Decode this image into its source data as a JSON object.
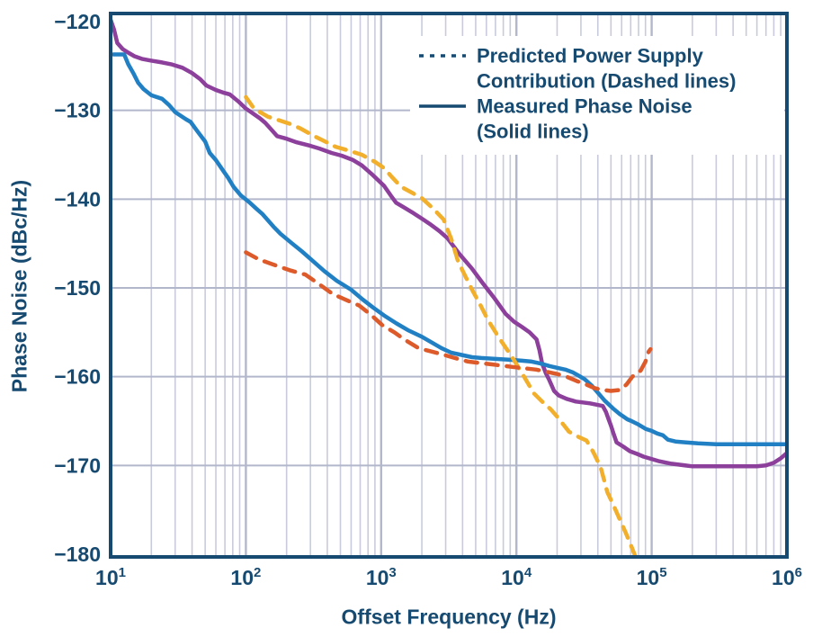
{
  "axes": {
    "x_label": "Offset Frequency (Hz)",
    "y_label": "Phase Noise (dBc/Hz)",
    "x_ticks": [
      {
        "base": "10",
        "exp": "1",
        "value": 10
      },
      {
        "base": "10",
        "exp": "2",
        "value": 100
      },
      {
        "base": "10",
        "exp": "3",
        "value": 1000
      },
      {
        "base": "10",
        "exp": "4",
        "value": 10000
      },
      {
        "base": "10",
        "exp": "5",
        "value": 100000
      },
      {
        "base": "10",
        "exp": "6",
        "value": 1000000
      }
    ],
    "y_ticks": [
      {
        "label": "−120",
        "value": -120
      },
      {
        "label": "−130",
        "value": -130
      },
      {
        "label": "−140",
        "value": -140
      },
      {
        "label": "−150",
        "value": -150
      },
      {
        "label": "−160",
        "value": -160
      },
      {
        "label": "−170",
        "value": -170
      },
      {
        "label": "−180",
        "value": -180
      }
    ]
  },
  "legend": {
    "items": [
      {
        "style": "dashed",
        "lines": [
          "Predicted Power Supply",
          "Contribution (Dashed lines)"
        ]
      },
      {
        "style": "solid",
        "lines": [
          "Measured Phase Noise",
          "(Solid lines)"
        ]
      }
    ]
  },
  "colors": {
    "navy": "#174A70",
    "grid_minor": "#c9cbdc",
    "grid_major": "#b3b7cc",
    "background": "#ffffff",
    "blue": "#2180C4",
    "purple": "#8C3F9B",
    "yellow": "#F1AF2C",
    "orange": "#DD5B2B"
  },
  "chart_data": {
    "type": "line",
    "x_scale": "log",
    "x_range": [
      10,
      1000000
    ],
    "y_range": [
      -180,
      -120
    ],
    "grid": "on",
    "legend_position": "top-right",
    "xlabel": "Offset Frequency (Hz)",
    "ylabel": "Phase Noise (dBc/Hz)",
    "series": [
      {
        "name": "measured-phase-noise-purple",
        "group": "Measured Phase Noise (Solid lines)",
        "color": "#8C3F9B",
        "dashed": false,
        "points": [
          [
            10,
            -119.8
          ],
          [
            10.6,
            -120.9
          ],
          [
            11.2,
            -122.4
          ],
          [
            12.3,
            -123.1
          ],
          [
            13.5,
            -123.5
          ],
          [
            15,
            -123.9
          ],
          [
            17,
            -124.2
          ],
          [
            20,
            -124.4
          ],
          [
            24,
            -124.6
          ],
          [
            28,
            -124.8
          ],
          [
            34,
            -125.2
          ],
          [
            40,
            -125.8
          ],
          [
            46,
            -126.5
          ],
          [
            51,
            -127.2
          ],
          [
            60,
            -127.7
          ],
          [
            68,
            -128.0
          ],
          [
            76,
            -128.2
          ],
          [
            88,
            -129.0
          ],
          [
            100,
            -129.8
          ],
          [
            114,
            -130.4
          ],
          [
            127,
            -130.9
          ],
          [
            139,
            -131.4
          ],
          [
            155,
            -132.2
          ],
          [
            170,
            -132.9
          ],
          [
            200,
            -133.2
          ],
          [
            238,
            -133.6
          ],
          [
            300,
            -134.0
          ],
          [
            350,
            -134.3
          ],
          [
            430,
            -134.8
          ],
          [
            510,
            -135.1
          ],
          [
            620,
            -135.6
          ],
          [
            720,
            -136.2
          ],
          [
            870,
            -137.3
          ],
          [
            1050,
            -138.5
          ],
          [
            1180,
            -139.6
          ],
          [
            1290,
            -140.4
          ],
          [
            1500,
            -141.0
          ],
          [
            1740,
            -141.6
          ],
          [
            2000,
            -142.2
          ],
          [
            2340,
            -142.9
          ],
          [
            2700,
            -143.6
          ],
          [
            3090,
            -144.4
          ],
          [
            3800,
            -146.2
          ],
          [
            4680,
            -147.8
          ],
          [
            5600,
            -149.4
          ],
          [
            6900,
            -151.2
          ],
          [
            8300,
            -152.9
          ],
          [
            9600,
            -153.8
          ],
          [
            11000,
            -154.4
          ],
          [
            12500,
            -155.0
          ],
          [
            14100,
            -155.8
          ],
          [
            14800,
            -157.0
          ],
          [
            15500,
            -158.5
          ],
          [
            16500,
            -159.6
          ],
          [
            17400,
            -160.3
          ],
          [
            19000,
            -161.6
          ],
          [
            20500,
            -162.1
          ],
          [
            23500,
            -162.5
          ],
          [
            27500,
            -162.8
          ],
          [
            35000,
            -163.0
          ],
          [
            43500,
            -163.3
          ],
          [
            46000,
            -164.0
          ],
          [
            48000,
            -164.8
          ],
          [
            50000,
            -165.5
          ],
          [
            52500,
            -166.5
          ],
          [
            55000,
            -167.4
          ],
          [
            62000,
            -167.9
          ],
          [
            69000,
            -168.4
          ],
          [
            78000,
            -168.7
          ],
          [
            87000,
            -169.0
          ],
          [
            112000,
            -169.5
          ],
          [
            140000,
            -169.8
          ],
          [
            200000,
            -170.1
          ],
          [
            300000,
            -170.1
          ],
          [
            450000,
            -170.1
          ],
          [
            600000,
            -170.1
          ],
          [
            700000,
            -170.0
          ],
          [
            800000,
            -169.7
          ],
          [
            900000,
            -169.2
          ],
          [
            1000000,
            -168.6
          ]
        ]
      },
      {
        "name": "measured-phase-noise-blue",
        "group": "Measured Phase Noise (Solid lines)",
        "color": "#2180C4",
        "dashed": false,
        "points": [
          [
            10.5,
            -123.7
          ],
          [
            12.6,
            -123.7
          ],
          [
            13.5,
            -124.8
          ],
          [
            14.7,
            -125.8
          ],
          [
            16,
            -126.9
          ],
          [
            17.5,
            -127.6
          ],
          [
            20,
            -128.3
          ],
          [
            24,
            -128.7
          ],
          [
            27,
            -129.4
          ],
          [
            30,
            -130.2
          ],
          [
            36,
            -131.0
          ],
          [
            39,
            -131.3
          ],
          [
            44,
            -132.4
          ],
          [
            50,
            -133.5
          ],
          [
            54,
            -134.8
          ],
          [
            60,
            -135.6
          ],
          [
            68,
            -136.8
          ],
          [
            74,
            -137.6
          ],
          [
            81,
            -138.6
          ],
          [
            92,
            -139.6
          ],
          [
            107,
            -140.4
          ],
          [
            120,
            -141.1
          ],
          [
            133,
            -141.7
          ],
          [
            160,
            -143.1
          ],
          [
            180,
            -143.9
          ],
          [
            220,
            -145.0
          ],
          [
            260,
            -145.9
          ],
          [
            320,
            -147.1
          ],
          [
            380,
            -148.1
          ],
          [
            470,
            -149.2
          ],
          [
            600,
            -150.2
          ],
          [
            730,
            -151.3
          ],
          [
            870,
            -152.2
          ],
          [
            1050,
            -153.1
          ],
          [
            1300,
            -154.0
          ],
          [
            1600,
            -154.8
          ],
          [
            2000,
            -155.5
          ],
          [
            2400,
            -156.2
          ],
          [
            2800,
            -156.8
          ],
          [
            3300,
            -157.3
          ],
          [
            3800,
            -157.5
          ],
          [
            4700,
            -157.8
          ],
          [
            5500,
            -157.9
          ],
          [
            7000,
            -158.0
          ],
          [
            9000,
            -158.1
          ],
          [
            11000,
            -158.2
          ],
          [
            13000,
            -158.3
          ],
          [
            15000,
            -158.5
          ],
          [
            17500,
            -158.8
          ],
          [
            20000,
            -159.0
          ],
          [
            23000,
            -159.2
          ],
          [
            26000,
            -159.5
          ],
          [
            29000,
            -159.9
          ],
          [
            32000,
            -160.3
          ],
          [
            36000,
            -161.0
          ],
          [
            40000,
            -161.8
          ],
          [
            45000,
            -162.7
          ],
          [
            52000,
            -163.6
          ],
          [
            58000,
            -164.2
          ],
          [
            62000,
            -164.5
          ],
          [
            66000,
            -164.8
          ],
          [
            71000,
            -165.0
          ],
          [
            80000,
            -165.4
          ],
          [
            91000,
            -165.9
          ],
          [
            100000,
            -166.1
          ],
          [
            110000,
            -166.4
          ],
          [
            121000,
            -166.6
          ],
          [
            132000,
            -167.1
          ],
          [
            150000,
            -167.3
          ],
          [
            180000,
            -167.4
          ],
          [
            220000,
            -167.5
          ],
          [
            300000,
            -167.6
          ],
          [
            500000,
            -167.6
          ],
          [
            1000000,
            -167.6
          ]
        ]
      },
      {
        "name": "predicted-supply-contribution-yellow",
        "group": "Predicted Power Supply Contribution (Dashed lines)",
        "color": "#F1AF2C",
        "dashed": true,
        "points": [
          [
            100,
            -128.5
          ],
          [
            115,
            -129.8
          ],
          [
            145,
            -130.7
          ],
          [
            210,
            -131.5
          ],
          [
            250,
            -132.0
          ],
          [
            320,
            -132.9
          ],
          [
            460,
            -134.1
          ],
          [
            600,
            -134.6
          ],
          [
            720,
            -135.0
          ],
          [
            900,
            -135.8
          ],
          [
            1050,
            -136.5
          ],
          [
            1200,
            -137.5
          ],
          [
            1400,
            -138.6
          ],
          [
            1700,
            -139.3
          ],
          [
            2000,
            -139.9
          ],
          [
            2400,
            -141.0
          ],
          [
            2900,
            -142.3
          ],
          [
            3300,
            -144.5
          ],
          [
            3700,
            -147.0
          ],
          [
            4200,
            -148.7
          ],
          [
            4700,
            -150.2
          ],
          [
            5400,
            -151.9
          ],
          [
            6200,
            -153.7
          ],
          [
            7500,
            -155.7
          ],
          [
            9300,
            -157.8
          ],
          [
            11000,
            -159.6
          ],
          [
            13500,
            -161.9
          ],
          [
            15500,
            -162.8
          ],
          [
            18000,
            -163.7
          ],
          [
            20000,
            -164.5
          ],
          [
            24500,
            -166.2
          ],
          [
            29000,
            -166.8
          ],
          [
            33000,
            -167.2
          ],
          [
            37000,
            -168.5
          ],
          [
            42000,
            -170.2
          ],
          [
            47000,
            -173.0
          ],
          [
            53000,
            -174.7
          ],
          [
            59000,
            -176.3
          ],
          [
            64000,
            -177.5
          ],
          [
            69000,
            -178.7
          ],
          [
            76000,
            -180.3
          ]
        ]
      },
      {
        "name": "predicted-supply-contribution-orange",
        "group": "Predicted Power Supply Contribution (Dashed lines)",
        "color": "#DD5B2B",
        "dashed": true,
        "points": [
          [
            100,
            -146.0
          ],
          [
            125,
            -146.8
          ],
          [
            155,
            -147.3
          ],
          [
            210,
            -148.0
          ],
          [
            275,
            -148.5
          ],
          [
            350,
            -149.6
          ],
          [
            440,
            -150.7
          ],
          [
            560,
            -151.4
          ],
          [
            690,
            -152.0
          ],
          [
            850,
            -153.1
          ],
          [
            1020,
            -154.2
          ],
          [
            1250,
            -155.0
          ],
          [
            1480,
            -155.8
          ],
          [
            1900,
            -156.8
          ],
          [
            2700,
            -157.4
          ],
          [
            3500,
            -157.9
          ],
          [
            4400,
            -158.3
          ],
          [
            6500,
            -158.6
          ],
          [
            9300,
            -158.9
          ],
          [
            14000,
            -159.2
          ],
          [
            20000,
            -159.7
          ],
          [
            23500,
            -160.0
          ],
          [
            28000,
            -160.5
          ],
          [
            33000,
            -160.9
          ],
          [
            38000,
            -161.3
          ],
          [
            44000,
            -161.5
          ],
          [
            50000,
            -161.6
          ],
          [
            58000,
            -161.5
          ],
          [
            65000,
            -160.9
          ],
          [
            72000,
            -160.0
          ],
          [
            83000,
            -159.3
          ],
          [
            90000,
            -158.3
          ],
          [
            95000,
            -157.2
          ],
          [
            98000,
            -156.9
          ]
        ]
      }
    ]
  }
}
